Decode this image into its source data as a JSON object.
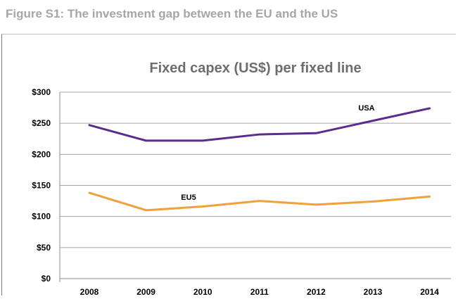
{
  "figure_heading": "Figure S1: The investment gap between the EU and the US",
  "chart_data": {
    "type": "line",
    "title": "Fixed capex (US$) per fixed line",
    "xlabel": "",
    "ylabel": "",
    "categories": [
      "2008",
      "2009",
      "2010",
      "2011",
      "2012",
      "2013",
      "2014"
    ],
    "series": [
      {
        "name": "USA",
        "color": "#5b2c8f",
        "values": [
          247,
          222,
          222,
          232,
          234,
          254,
          274
        ]
      },
      {
        "name": "EU5",
        "color": "#f0a13a",
        "values": [
          138,
          110,
          116,
          125,
          119,
          124,
          132
        ]
      }
    ],
    "ylim": [
      0,
      300
    ],
    "yticks": [
      0,
      50,
      100,
      150,
      200,
      250,
      300
    ],
    "ytick_labels": [
      "$0",
      "$50",
      "$100",
      "$150",
      "$200",
      "$250",
      "$300"
    ],
    "grid": true,
    "legend": "none"
  }
}
